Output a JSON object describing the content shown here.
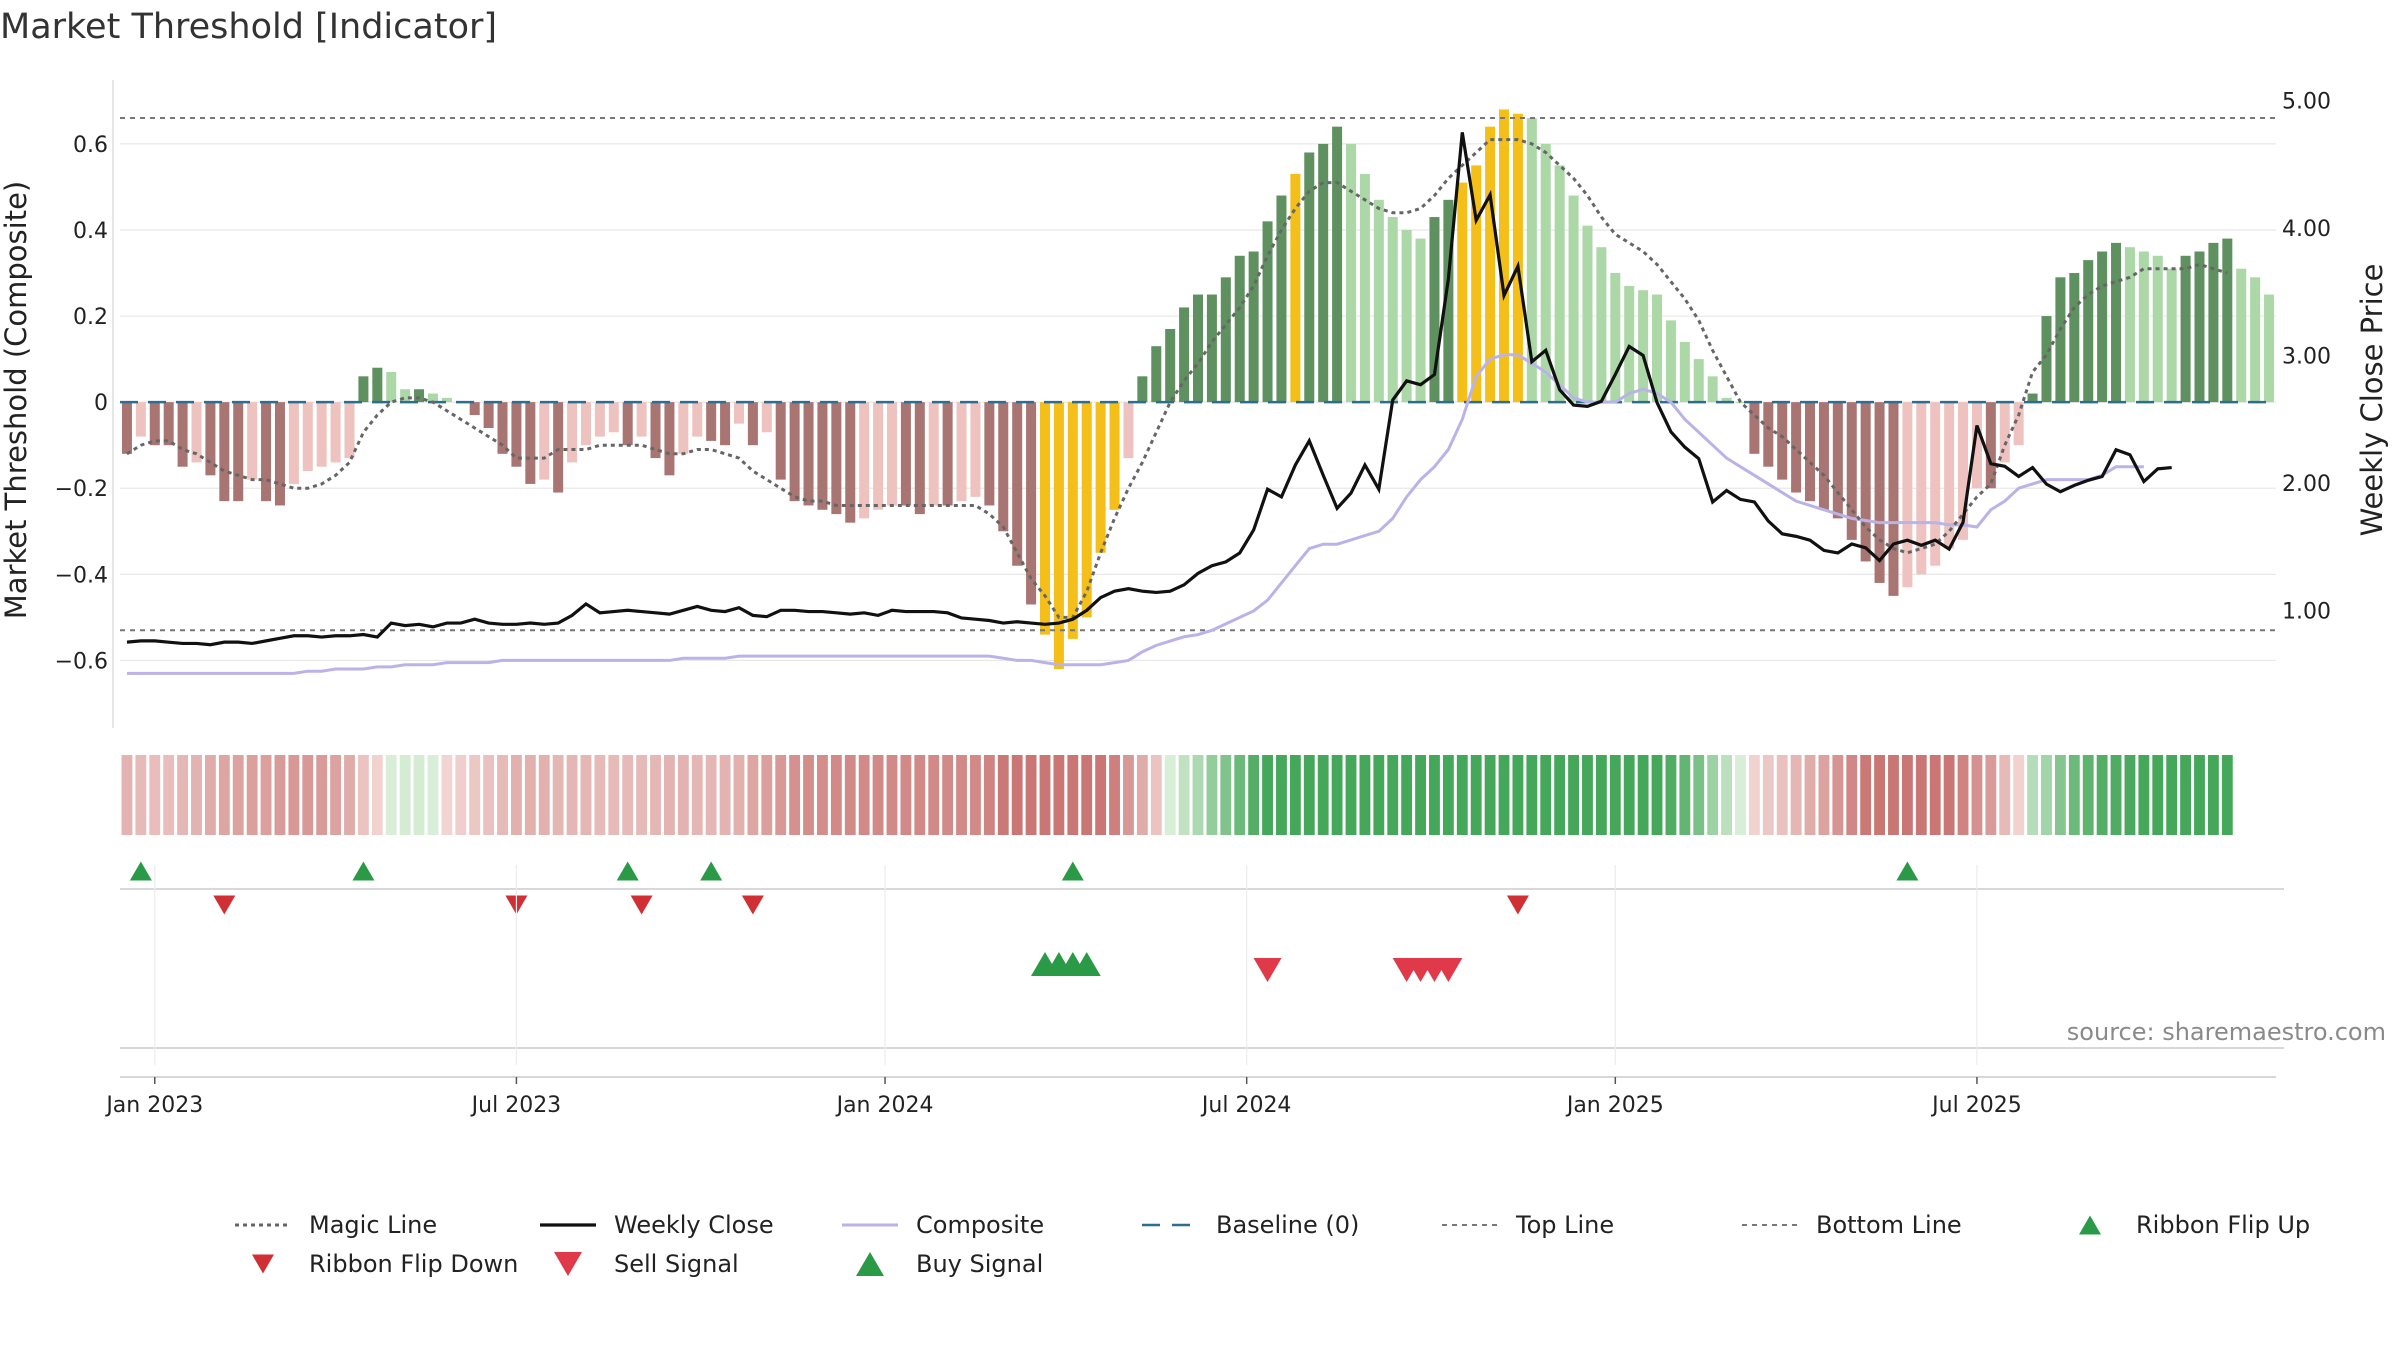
{
  "chart_data": {
    "type": "bar",
    "title": "Market Threshold [Indicator]",
    "ylabel_left": "Market Threshold (Composite)",
    "ylabel_right": "Weekly Close Price",
    "source_text": "source: sharemaestro.com",
    "ylim_left": [
      -0.75,
      0.76
    ],
    "ylim_right": [
      0.1,
      5.2
    ],
    "left_ticks": [
      {
        "value": 0.6,
        "label": "0.6"
      },
      {
        "value": 0.4,
        "label": "0.4"
      },
      {
        "value": 0.2,
        "label": "0.2"
      },
      {
        "value": 0,
        "label": "0"
      },
      {
        "value": -0.2,
        "label": "−0.2"
      },
      {
        "value": -0.4,
        "label": "−0.4"
      },
      {
        "value": -0.6,
        "label": "−0.6"
      }
    ],
    "right_ticks": [
      {
        "value": 5.0,
        "label": "5.00"
      },
      {
        "value": 4.0,
        "label": "4.00"
      },
      {
        "value": 3.0,
        "label": "3.00"
      },
      {
        "value": 2.0,
        "label": "2.00"
      },
      {
        "value": 1.0,
        "label": "1.00"
      }
    ],
    "x_ticks": [
      {
        "index": 2,
        "label": "Jan 2023"
      },
      {
        "index": 28,
        "label": "Jul 2023"
      },
      {
        "index": 54.5,
        "label": "Jan 2024"
      },
      {
        "index": 80.5,
        "label": "Jul 2024"
      },
      {
        "index": 107,
        "label": "Jan 2025"
      },
      {
        "index": 133,
        "label": "Jul 2025"
      }
    ],
    "top_line": 0.66,
    "bottom_line": -0.53,
    "baseline": 0,
    "bars": [
      -0.12,
      -0.08,
      -0.1,
      -0.1,
      -0.15,
      -0.14,
      -0.17,
      -0.23,
      -0.23,
      -0.18,
      -0.23,
      -0.24,
      -0.19,
      -0.16,
      -0.15,
      -0.14,
      -0.13,
      0.06,
      0.08,
      0.07,
      0.03,
      0.03,
      0.02,
      0.01,
      0.0,
      -0.03,
      -0.06,
      -0.12,
      -0.15,
      -0.19,
      -0.18,
      -0.21,
      -0.14,
      -0.1,
      -0.08,
      -0.07,
      -0.1,
      -0.08,
      -0.13,
      -0.17,
      -0.12,
      -0.08,
      -0.09,
      -0.1,
      -0.05,
      -0.1,
      -0.07,
      -0.18,
      -0.23,
      -0.24,
      -0.25,
      -0.26,
      -0.28,
      -0.27,
      -0.25,
      -0.24,
      -0.24,
      -0.26,
      -0.24,
      -0.24,
      -0.23,
      -0.22,
      -0.24,
      -0.3,
      -0.38,
      -0.47,
      -0.54,
      -0.62,
      -0.55,
      -0.5,
      -0.35,
      -0.25,
      -0.13,
      0.06,
      0.13,
      0.17,
      0.22,
      0.25,
      0.25,
      0.29,
      0.34,
      0.35,
      0.42,
      0.48,
      0.53,
      0.58,
      0.6,
      0.64,
      0.6,
      0.53,
      0.47,
      0.43,
      0.4,
      0.38,
      0.43,
      0.47,
      0.51,
      0.55,
      0.64,
      0.68,
      0.67,
      0.66,
      0.6,
      0.55,
      0.48,
      0.41,
      0.36,
      0.3,
      0.27,
      0.26,
      0.25,
      0.19,
      0.14,
      0.1,
      0.06,
      0.01,
      0.0,
      -0.12,
      -0.15,
      -0.18,
      -0.21,
      -0.23,
      -0.25,
      -0.27,
      -0.32,
      -0.37,
      -0.42,
      -0.45,
      -0.43,
      -0.4,
      -0.38,
      -0.34,
      -0.32,
      -0.2,
      -0.2,
      -0.14,
      -0.1,
      0.02,
      0.2,
      0.29,
      0.3,
      0.33,
      0.35,
      0.37,
      0.36,
      0.35,
      0.34,
      0.31,
      0.34,
      0.35,
      0.37,
      0.38,
      0.31,
      0.29,
      0.25
    ],
    "yellow_bars": [
      66,
      67,
      68,
      69,
      70,
      71,
      84,
      96,
      97,
      98,
      99,
      100
    ],
    "magic_line": [
      -0.12,
      -0.1,
      -0.09,
      -0.09,
      -0.11,
      -0.12,
      -0.14,
      -0.16,
      -0.17,
      -0.18,
      -0.18,
      -0.19,
      -0.2,
      -0.2,
      -0.19,
      -0.17,
      -0.14,
      -0.07,
      -0.03,
      0.0,
      0.01,
      0.01,
      0.0,
      -0.02,
      -0.04,
      -0.06,
      -0.08,
      -0.1,
      -0.13,
      -0.13,
      -0.13,
      -0.11,
      -0.11,
      -0.11,
      -0.1,
      -0.1,
      -0.1,
      -0.1,
      -0.11,
      -0.12,
      -0.12,
      -0.11,
      -0.11,
      -0.12,
      -0.13,
      -0.16,
      -0.18,
      -0.2,
      -0.22,
      -0.23,
      -0.23,
      -0.24,
      -0.24,
      -0.24,
      -0.24,
      -0.24,
      -0.24,
      -0.24,
      -0.24,
      -0.24,
      -0.24,
      -0.24,
      -0.26,
      -0.29,
      -0.35,
      -0.41,
      -0.45,
      -0.5,
      -0.5,
      -0.44,
      -0.35,
      -0.27,
      -0.2,
      -0.14,
      -0.07,
      0.0,
      0.05,
      0.09,
      0.14,
      0.18,
      0.22,
      0.27,
      0.34,
      0.4,
      0.45,
      0.49,
      0.51,
      0.51,
      0.49,
      0.47,
      0.45,
      0.44,
      0.44,
      0.45,
      0.48,
      0.52,
      0.55,
      0.58,
      0.61,
      0.61,
      0.61,
      0.6,
      0.58,
      0.55,
      0.52,
      0.48,
      0.43,
      0.39,
      0.37,
      0.35,
      0.32,
      0.28,
      0.24,
      0.19,
      0.12,
      0.06,
      0.0,
      -0.03,
      -0.06,
      -0.08,
      -0.11,
      -0.14,
      -0.17,
      -0.21,
      -0.25,
      -0.29,
      -0.32,
      -0.34,
      -0.35,
      -0.34,
      -0.33,
      -0.3,
      -0.26,
      -0.22,
      -0.19,
      -0.1,
      -0.03,
      0.07,
      0.11,
      0.17,
      0.22,
      0.25,
      0.27,
      0.28,
      0.29,
      0.31,
      0.31,
      0.31,
      0.31,
      0.32,
      0.31,
      0.3
    ],
    "weekly_close": [
      0.75,
      0.76,
      0.76,
      0.75,
      0.74,
      0.74,
      0.73,
      0.75,
      0.75,
      0.74,
      0.76,
      0.78,
      0.8,
      0.8,
      0.79,
      0.8,
      0.8,
      0.81,
      0.79,
      0.9,
      0.88,
      0.89,
      0.87,
      0.9,
      0.9,
      0.93,
      0.9,
      0.89,
      0.89,
      0.9,
      0.89,
      0.9,
      0.96,
      1.05,
      0.98,
      0.99,
      1.0,
      0.99,
      0.98,
      0.97,
      1.0,
      1.03,
      1.0,
      0.99,
      1.02,
      0.96,
      0.95,
      1.0,
      1.0,
      0.99,
      0.99,
      0.98,
      0.97,
      0.98,
      0.96,
      1.0,
      0.99,
      0.99,
      0.99,
      0.98,
      0.94,
      0.93,
      0.92,
      0.9,
      0.91,
      0.9,
      0.89,
      0.9,
      0.93,
      1.0,
      1.1,
      1.15,
      1.17,
      1.15,
      1.14,
      1.15,
      1.2,
      1.29,
      1.35,
      1.38,
      1.45,
      1.63,
      1.95,
      1.89,
      2.14,
      2.33,
      2.06,
      1.8,
      1.92,
      2.14,
      1.95,
      2.65,
      2.8,
      2.77,
      2.85,
      3.6,
      4.75,
      4.06,
      4.26,
      3.47,
      3.7,
      2.95,
      3.04,
      2.73,
      2.61,
      2.6,
      2.64,
      2.85,
      3.07,
      3.0,
      2.63,
      2.4,
      2.28,
      2.19,
      1.85,
      1.94,
      1.87,
      1.85,
      1.7,
      1.6,
      1.58,
      1.55,
      1.47,
      1.45,
      1.52,
      1.49,
      1.39,
      1.52,
      1.55,
      1.51,
      1.55,
      1.48,
      1.69,
      2.45,
      2.15,
      2.13,
      2.05,
      2.12,
      1.99,
      1.93,
      1.98,
      2.02,
      2.05,
      2.26,
      2.22,
      2.01,
      2.11,
      2.12
    ],
    "composite": [
      -0.63,
      -0.63,
      -0.63,
      -0.63,
      -0.63,
      -0.63,
      -0.63,
      -0.63,
      -0.63,
      -0.63,
      -0.63,
      -0.63,
      -0.63,
      -0.625,
      -0.625,
      -0.62,
      -0.62,
      -0.62,
      -0.615,
      -0.615,
      -0.61,
      -0.61,
      -0.61,
      -0.605,
      -0.605,
      -0.605,
      -0.605,
      -0.6,
      -0.6,
      -0.6,
      -0.6,
      -0.6,
      -0.6,
      -0.6,
      -0.6,
      -0.6,
      -0.6,
      -0.6,
      -0.6,
      -0.6,
      -0.595,
      -0.595,
      -0.595,
      -0.595,
      -0.59,
      -0.59,
      -0.59,
      -0.59,
      -0.59,
      -0.59,
      -0.59,
      -0.59,
      -0.59,
      -0.59,
      -0.59,
      -0.59,
      -0.59,
      -0.59,
      -0.59,
      -0.59,
      -0.59,
      -0.59,
      -0.59,
      -0.595,
      -0.6,
      -0.6,
      -0.605,
      -0.61,
      -0.61,
      -0.61,
      -0.61,
      -0.605,
      -0.6,
      -0.58,
      -0.565,
      -0.555,
      -0.545,
      -0.54,
      -0.53,
      -0.515,
      -0.5,
      -0.485,
      -0.46,
      -0.42,
      -0.38,
      -0.34,
      -0.33,
      -0.33,
      -0.32,
      -0.31,
      -0.3,
      -0.27,
      -0.22,
      -0.18,
      -0.15,
      -0.11,
      -0.04,
      0.06,
      0.1,
      0.11,
      0.11,
      0.09,
      0.07,
      0.04,
      0.01,
      0.0,
      0.0,
      0.0,
      0.02,
      0.03,
      0.02,
      0.0,
      -0.04,
      -0.07,
      -0.1,
      -0.13,
      -0.15,
      -0.17,
      -0.19,
      -0.21,
      -0.23,
      -0.24,
      -0.25,
      -0.26,
      -0.27,
      -0.275,
      -0.28,
      -0.28,
      -0.28,
      -0.28,
      -0.28,
      -0.285,
      -0.285,
      -0.29,
      -0.25,
      -0.23,
      -0.2,
      -0.19,
      -0.18,
      -0.18,
      -0.18,
      -0.18,
      -0.17,
      -0.15,
      -0.15,
      -0.15
    ],
    "ribbon_flip_up": [
      1,
      17,
      36,
      42,
      68,
      128
    ],
    "ribbon_flip_down": [
      7,
      28,
      37,
      45,
      100
    ],
    "buy_signal": [
      66,
      67,
      68,
      69
    ],
    "sell_signal": [
      82,
      92,
      93,
      94,
      95
    ],
    "legend": [
      {
        "label": "Magic Line"
      },
      {
        "label": "Weekly Close"
      },
      {
        "label": "Composite"
      },
      {
        "label": "Baseline (0)"
      },
      {
        "label": "Top Line"
      },
      {
        "label": "Bottom Line"
      },
      {
        "label": "Ribbon Flip Up"
      },
      {
        "label": "Ribbon Flip Down"
      },
      {
        "label": "Sell Signal"
      },
      {
        "label": "Buy Signal"
      }
    ],
    "colors": {
      "bull_strong": "#5f9160",
      "bull_weak": "#acd8a8",
      "bear_strong": "#a97572",
      "bear_weak": "#eec3bf",
      "yellow": "#f5bf1a",
      "magic": "#666666",
      "close": "#111111",
      "composite": "#b9b3e8",
      "baseline": "#2c6e8f",
      "ref_line": "#777777",
      "flip_up": "#2a9a47",
      "flip_down": "#d02f34",
      "buy": "#2a9a47",
      "sell": "#e03a4a"
    }
  }
}
